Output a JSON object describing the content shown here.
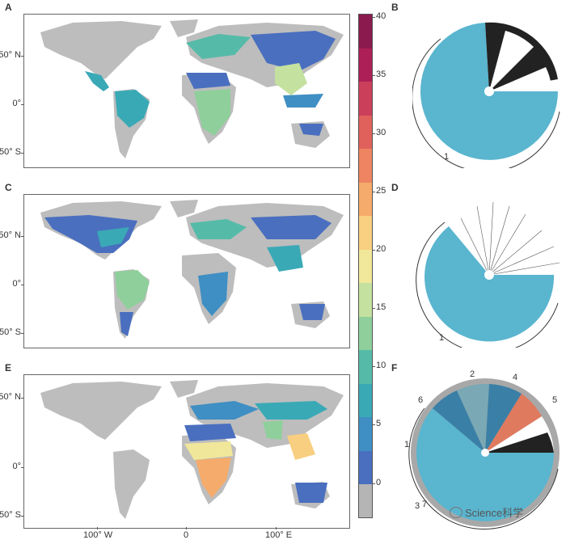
{
  "panels": {
    "A": "A",
    "B": "B",
    "C": "C",
    "D": "D",
    "E": "E",
    "F": "F"
  },
  "lat_labels": [
    "50° N",
    "0°",
    "50° S"
  ],
  "lon_labels": [
    "100° W",
    "0",
    "100° E"
  ],
  "colors": {
    "land_gray": "#bdbdbd",
    "teal": "#5ab5cf",
    "black_branch": "#222222",
    "salmon": "#e07a5f",
    "gray_branch": "#9a9a9a"
  },
  "chart_data": [
    {
      "type": "heatmap",
      "panel": "A",
      "title": "",
      "colorbar": {
        "min": 0,
        "max": 40,
        "ticks": [
          0,
          5,
          10,
          15,
          20,
          25,
          30,
          35,
          40
        ],
        "colors": [
          "#b5b5b5",
          "#4a6fbf",
          "#3f8fc4",
          "#3aa9b6",
          "#55bba8",
          "#8fcf9b",
          "#c5e1a0",
          "#f1e79a",
          "#f8cf80",
          "#f5ab6b",
          "#ee8462",
          "#e0615c",
          "#cc3f5b",
          "#ad2057",
          "#8b1a4f"
        ]
      }
    },
    {
      "type": "heatmap",
      "panel": "C",
      "title": ""
    },
    {
      "type": "heatmap",
      "panel": "E",
      "title": ""
    },
    {
      "type": "tree",
      "panel": "B",
      "clade_labels": [
        "1"
      ]
    },
    {
      "type": "tree",
      "panel": "D",
      "clade_labels": [
        "1"
      ]
    },
    {
      "type": "tree",
      "panel": "F",
      "clade_labels": [
        "2",
        "4",
        "5",
        "6",
        "1",
        "3",
        "7"
      ]
    }
  ],
  "watermark": "Science科学"
}
